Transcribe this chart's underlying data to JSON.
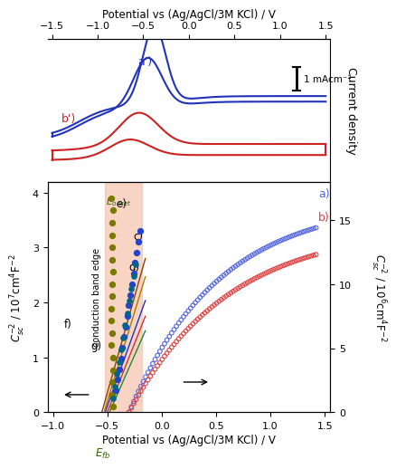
{
  "top_xlabel": "Potential vs (Ag/AgCl/3M KCl) / V",
  "bottom_xlabel": "Potential vs (Ag/AgCl/3M KCl) / V",
  "left_ylabel": "$C^{-2}_{sc}$ / 10$^7$cm$^4$F$^{-2}$",
  "right_ylabel": "$C^{-2}_{sc}$ / 10$^6$cm$^4$F$^{-2}$",
  "cv_ylabel": "Current density",
  "xlim_main": [
    -1.05,
    1.55
  ],
  "xlim_cv": [
    -1.55,
    1.55
  ],
  "ylim_left": [
    0,
    4.2
  ],
  "ylim_right": [
    0,
    18
  ],
  "shade_xl": -0.52,
  "shade_xr": -0.18,
  "shade_color": "#f5c6b0",
  "Efb_x": -0.52,
  "Eonset_label": "E$_{onset}$",
  "Efb_label": "$E_{fb}$",
  "conduction_label": "conduction band edge",
  "cv_blue_color": "#2233bb",
  "cv_red_color": "#cc2222",
  "ms_olive_color": "#7a7a00",
  "ms_blue_color": "#2244cc",
  "ms_teal_color": "#006688",
  "ms_open_blue": "#5566dd",
  "ms_open_red": "#dd4444",
  "line_colors": [
    "#2233bb",
    "#cc3333",
    "#228833",
    "#aa7700",
    "#884400"
  ],
  "background": "#ffffff",
  "scale_bar_label": "1 mAcm⁻²"
}
